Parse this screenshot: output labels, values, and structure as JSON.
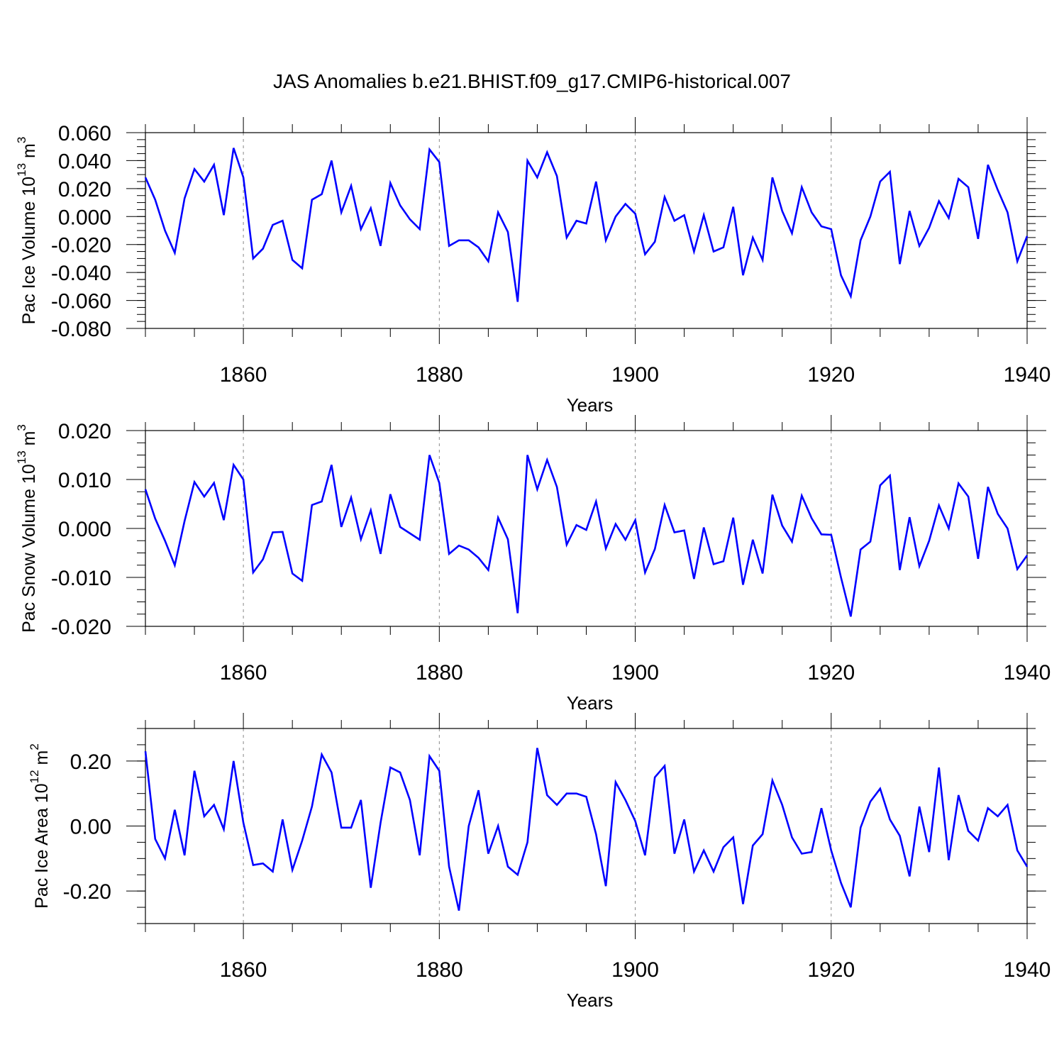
{
  "title": "JAS Anomalies b.e21.BHIST.f09_g17.CMIP6-historical.007",
  "colors": {
    "line": "#0000ff",
    "axes": "#000000",
    "grid": "#888888"
  },
  "chart_data": [
    {
      "type": "line",
      "ylabel": {
        "text": "Pac Ice Volume 10",
        "exp": "13",
        "unit": " m",
        "unit_exp": "3"
      },
      "xlabel": "Years",
      "xlim": [
        1850,
        1940
      ],
      "ylim": [
        -0.08,
        0.06
      ],
      "x_ticks": [
        "1860",
        "1880",
        "1900",
        "1920",
        "1940"
      ],
      "y_ticks": [
        "0.060",
        "0.040",
        "0.020",
        "0.000",
        "-0.020",
        "-0.040",
        "-0.060",
        "-0.080"
      ],
      "grid": "vertical dashed at 1860, 1880, 1900, 1920",
      "series": [
        {
          "x_start": 1850,
          "values": [
            0.028,
            0.012,
            -0.01,
            -0.026,
            0.013,
            0.034,
            0.025,
            0.037,
            0.001,
            0.049,
            0.028,
            -0.03,
            -0.023,
            -0.006,
            -0.003,
            -0.031,
            -0.037,
            0.012,
            0.016,
            0.04,
            0.003,
            0.022,
            -0.009,
            0.006,
            -0.021,
            0.024,
            0.008,
            -0.002,
            -0.009,
            0.048,
            0.039,
            -0.021,
            -0.017,
            -0.017,
            -0.022,
            -0.032,
            0.003,
            -0.011,
            -0.061,
            0.04,
            0.028,
            0.046,
            0.029,
            -0.015,
            -0.003,
            -0.005,
            0.025,
            -0.017,
            0.0,
            0.009,
            0.002,
            -0.027,
            -0.018,
            0.014,
            -0.003,
            0.001,
            -0.025,
            0.001,
            -0.025,
            -0.022,
            0.007,
            -0.042,
            -0.015,
            -0.031,
            0.028,
            0.004,
            -0.012,
            0.021,
            0.003,
            -0.007,
            -0.009,
            -0.042,
            -0.057,
            -0.017,
            0.0,
            0.025,
            0.032,
            -0.034,
            0.004,
            -0.021,
            -0.008,
            0.011,
            -0.001,
            0.027,
            0.021,
            -0.016,
            0.037,
            0.019,
            0.003,
            -0.032,
            -0.014
          ]
        }
      ]
    },
    {
      "type": "line",
      "ylabel": {
        "text": "Pac Snow Volume 10",
        "exp": "13",
        "unit": " m",
        "unit_exp": "3"
      },
      "xlabel": "Years",
      "xlim": [
        1850,
        1940
      ],
      "ylim": [
        -0.02,
        0.02
      ],
      "x_ticks": [
        "1860",
        "1880",
        "1900",
        "1920",
        "1940"
      ],
      "y_ticks": [
        "0.020",
        "0.010",
        "0.000",
        "-0.010",
        "-0.020"
      ],
      "grid": "vertical dashed at 1860, 1880, 1900, 1920",
      "series": [
        {
          "x_start": 1850,
          "values": [
            0.008,
            0.002,
            -0.0025,
            -0.0075,
            0.0015,
            0.0095,
            0.0065,
            0.0093,
            0.0017,
            0.013,
            0.01,
            -0.009,
            -0.0063,
            -0.0008,
            -0.0007,
            -0.0092,
            -0.0107,
            0.0048,
            0.0055,
            0.013,
            0.0003,
            0.0063,
            -0.0022,
            0.0037,
            -0.0052,
            0.007,
            0.0003,
            -0.001,
            -0.0023,
            0.015,
            0.0093,
            -0.0052,
            -0.0035,
            -0.0043,
            -0.006,
            -0.0085,
            0.0022,
            -0.0022,
            -0.0173,
            0.015,
            0.008,
            0.014,
            0.0085,
            -0.0033,
            0.0007,
            -0.0003,
            0.0055,
            -0.0041,
            0.0009,
            -0.0023,
            0.0017,
            -0.009,
            -0.0042,
            0.0048,
            -0.0008,
            -0.0004,
            -0.0103,
            0.0002,
            -0.0073,
            -0.0067,
            0.0022,
            -0.0115,
            -0.0023,
            -0.0092,
            0.0069,
            0.0006,
            -0.0027,
            0.0067,
            0.0021,
            -0.0012,
            -0.0013,
            -0.01,
            -0.018,
            -0.0043,
            -0.0027,
            0.0088,
            0.0108,
            -0.0085,
            0.0023,
            -0.0077,
            -0.0025,
            0.0047,
            0.0,
            0.0092,
            0.0065,
            -0.0062,
            0.0085,
            0.003,
            0.0,
            -0.0083,
            -0.0055
          ]
        }
      ]
    },
    {
      "type": "line",
      "ylabel": {
        "text": "Pac Ice Area 10",
        "exp": "12",
        "unit": " m",
        "unit_exp": "2"
      },
      "xlabel": "Years",
      "xlim": [
        1850,
        1940
      ],
      "ylim": [
        -0.3,
        0.3
      ],
      "x_ticks": [
        "1860",
        "1880",
        "1900",
        "1920",
        "1940"
      ],
      "y_ticks": [
        "0.20",
        "0.00",
        "-0.20"
      ],
      "grid": "vertical dashed at 1860, 1880, 1900, 1920",
      "series": [
        {
          "x_start": 1850,
          "values": [
            0.23,
            -0.04,
            -0.1,
            0.05,
            -0.09,
            0.17,
            0.03,
            0.065,
            -0.01,
            0.2,
            0.01,
            -0.12,
            -0.115,
            -0.14,
            0.02,
            -0.135,
            -0.045,
            0.06,
            0.22,
            0.165,
            -0.005,
            -0.005,
            0.08,
            -0.19,
            0.01,
            0.18,
            0.165,
            0.08,
            -0.09,
            0.215,
            0.17,
            -0.125,
            -0.26,
            0.0,
            0.11,
            -0.085,
            0.0,
            -0.125,
            -0.15,
            -0.05,
            0.24,
            0.095,
            0.065,
            0.1,
            0.1,
            0.09,
            -0.025,
            -0.185,
            0.135,
            0.08,
            0.015,
            -0.09,
            0.15,
            0.185,
            -0.085,
            0.02,
            -0.14,
            -0.075,
            -0.14,
            -0.065,
            -0.035,
            -0.24,
            -0.06,
            -0.025,
            0.14,
            0.065,
            -0.035,
            -0.085,
            -0.08,
            0.055,
            -0.075,
            -0.175,
            -0.25,
            -0.005,
            0.075,
            0.115,
            0.02,
            -0.03,
            -0.155,
            0.06,
            -0.08,
            0.18,
            -0.105,
            0.095,
            -0.015,
            -0.045,
            0.055,
            0.03,
            0.065,
            -0.075,
            -0.125
          ]
        }
      ]
    }
  ]
}
